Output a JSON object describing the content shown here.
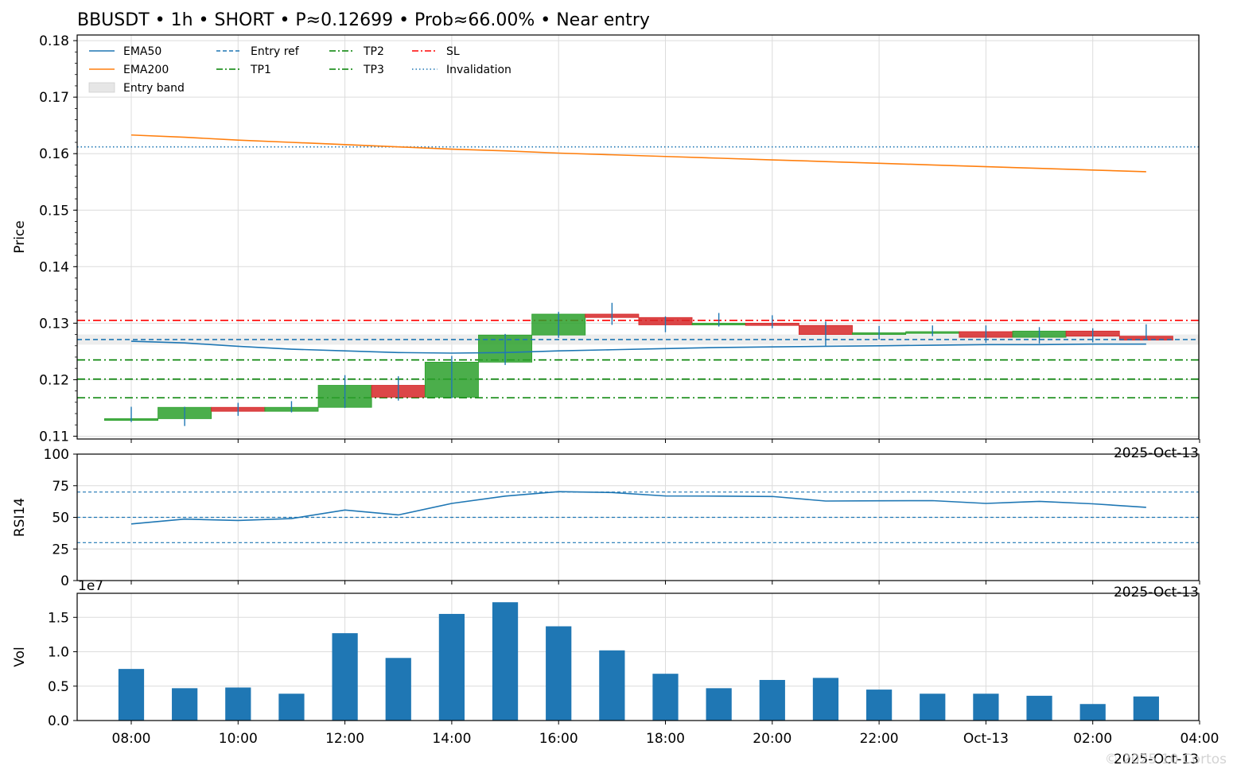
{
  "title": "BBUSDT • 1h • SHORT • P≈0.12699 • Prob≈66.00% • Near entry",
  "watermark": "© 2025 10 Cortos",
  "colors": {
    "up": "#2ca02c",
    "down": "#d62728",
    "ema50": "#1f77b4",
    "ema200": "#ff7f0e",
    "entry": "#1f77b4",
    "tp": "#008000",
    "sl": "#ff0000",
    "inval": "#1f77b4",
    "rsi": "#1f77b4",
    "vol": "#1f77b4",
    "band": "#e6e6e6",
    "grid": "#dcdcdc"
  },
  "x_ticks": [
    "08:00",
    "10:00",
    "12:00",
    "14:00",
    "16:00",
    "18:00",
    "20:00",
    "22:00",
    "Oct-13",
    "02:00",
    "04:00"
  ],
  "x_offset_label": "2025-Oct-13",
  "chart_data": [
    {
      "type": "candlestick",
      "ylabel": "Price",
      "ylim": [
        0.1095,
        0.181
      ],
      "yticks": [
        "0.11",
        "0.12",
        "0.13",
        "0.14",
        "0.15",
        "0.16",
        "0.17",
        "0.18"
      ],
      "grid": true,
      "legend": "top-left",
      "hours": [
        "08:00",
        "09:00",
        "10:00",
        "11:00",
        "12:00",
        "13:00",
        "14:00",
        "15:00",
        "16:00",
        "17:00",
        "18:00",
        "19:00",
        "20:00",
        "21:00",
        "22:00",
        "23:00",
        "00:00",
        "01:00",
        "02:00",
        "03:00"
      ],
      "candles": [
        {
          "o": 0.1128,
          "h": 0.1152,
          "l": 0.1125,
          "c": 0.1131
        },
        {
          "o": 0.1131,
          "h": 0.1152,
          "l": 0.1118,
          "c": 0.1151
        },
        {
          "o": 0.1151,
          "h": 0.1159,
          "l": 0.1136,
          "c": 0.1144
        },
        {
          "o": 0.1144,
          "h": 0.1162,
          "l": 0.1142,
          "c": 0.1151
        },
        {
          "o": 0.1151,
          "h": 0.1208,
          "l": 0.115,
          "c": 0.119
        },
        {
          "o": 0.119,
          "h": 0.1206,
          "l": 0.1163,
          "c": 0.1169
        },
        {
          "o": 0.1169,
          "h": 0.1242,
          "l": 0.1167,
          "c": 0.1231
        },
        {
          "o": 0.1231,
          "h": 0.1281,
          "l": 0.1226,
          "c": 0.1279
        },
        {
          "o": 0.1279,
          "h": 0.132,
          "l": 0.1274,
          "c": 0.1316
        },
        {
          "o": 0.1316,
          "h": 0.1336,
          "l": 0.1297,
          "c": 0.131
        },
        {
          "o": 0.131,
          "h": 0.1312,
          "l": 0.1284,
          "c": 0.1297
        },
        {
          "o": 0.1297,
          "h": 0.1318,
          "l": 0.1294,
          "c": 0.13
        },
        {
          "o": 0.13,
          "h": 0.1314,
          "l": 0.1291,
          "c": 0.1296
        },
        {
          "o": 0.1296,
          "h": 0.1303,
          "l": 0.126,
          "c": 0.128
        },
        {
          "o": 0.128,
          "h": 0.1295,
          "l": 0.1271,
          "c": 0.1283
        },
        {
          "o": 0.1283,
          "h": 0.1296,
          "l": 0.1277,
          "c": 0.1285
        },
        {
          "o": 0.1285,
          "h": 0.1296,
          "l": 0.1265,
          "c": 0.1275
        },
        {
          "o": 0.1275,
          "h": 0.1293,
          "l": 0.1264,
          "c": 0.1286
        },
        {
          "o": 0.1286,
          "h": 0.1291,
          "l": 0.1266,
          "c": 0.1277
        },
        {
          "o": 0.1277,
          "h": 0.1298,
          "l": 0.127,
          "c": 0.127
        }
      ],
      "ema50": [
        0.1268,
        0.1265,
        0.1259,
        0.1254,
        0.1251,
        0.1248,
        0.1247,
        0.1248,
        0.1251,
        0.1253,
        0.1255,
        0.1257,
        0.1258,
        0.1259,
        0.126,
        0.1261,
        0.1262,
        0.1262,
        0.1263,
        0.1263
      ],
      "ema200": [
        0.1633,
        0.1629,
        0.1624,
        0.162,
        0.1616,
        0.1612,
        0.1608,
        0.1605,
        0.1601,
        0.1598,
        0.1595,
        0.1592,
        0.1589,
        0.1586,
        0.1583,
        0.158,
        0.1577,
        0.1574,
        0.1571,
        0.1568
      ],
      "levels": {
        "entry_ref": 0.1271,
        "entry_band": [
          0.1262,
          0.128
        ],
        "tp1": 0.1235,
        "tp2": 0.1201,
        "tp3": 0.1168,
        "sl": 0.1305,
        "invalidation": 0.1612
      },
      "legend_entries": [
        {
          "key": "ema50",
          "label": "EMA50"
        },
        {
          "key": "ema200",
          "label": "EMA200"
        },
        {
          "key": "band",
          "label": "Entry band"
        },
        {
          "key": "entry",
          "label": "Entry ref"
        },
        {
          "key": "tp1",
          "label": "TP1"
        },
        {
          "key": "tp2",
          "label": "TP2"
        },
        {
          "key": "tp3",
          "label": "TP3"
        },
        {
          "key": "sl",
          "label": "SL"
        },
        {
          "key": "inval",
          "label": "Invalidation"
        }
      ]
    },
    {
      "type": "line",
      "ylabel": "RSI14",
      "ylim": [
        0,
        100
      ],
      "yticks": [
        "0",
        "25",
        "50",
        "75",
        "100"
      ],
      "grid": true,
      "reference_lines": [
        30,
        50,
        70
      ],
      "values": [
        44.8,
        48.6,
        47.5,
        49.0,
        55.8,
        51.9,
        61.0,
        66.8,
        70.3,
        69.6,
        66.9,
        66.8,
        66.5,
        62.9,
        63.1,
        63.2,
        61.0,
        62.6,
        60.7,
        57.9
      ]
    },
    {
      "type": "bar",
      "ylabel": "Vol",
      "ylim": [
        0,
        18500000
      ],
      "yticks": [
        "0.0",
        "0.5",
        "1.0",
        "1.5"
      ],
      "multiplier_label": "1e7",
      "grid": true,
      "values": [
        7500000,
        4700000,
        4800000,
        3900000,
        12700000,
        9100000,
        15500000,
        17200000,
        13700000,
        10200000,
        6800000,
        4700000,
        5900000,
        6200000,
        4500000,
        3900000,
        3900000,
        3600000,
        2400000,
        3500000
      ]
    }
  ]
}
